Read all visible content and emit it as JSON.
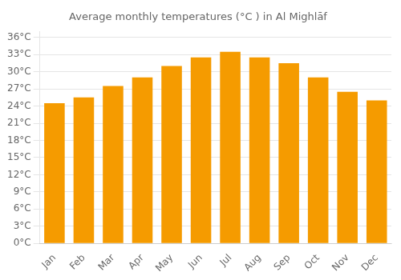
{
  "chart_data": {
    "type": "bar",
    "title": "Average monthly temperatures (°C ) in Al Mighlāf",
    "categories": [
      "Jan",
      "Feb",
      "Mar",
      "Apr",
      "May",
      "Jun",
      "Jul",
      "Aug",
      "Sep",
      "Oct",
      "Nov",
      "Dec"
    ],
    "values": [
      24.5,
      25.5,
      27.5,
      29.0,
      31.0,
      32.5,
      33.5,
      32.5,
      31.5,
      29.0,
      26.5,
      25.0
    ],
    "color": "#F59B00",
    "ylim": [
      0,
      37
    ],
    "yticks": [
      {
        "value": 0,
        "label": "0°C"
      },
      {
        "value": 3,
        "label": "3°C"
      },
      {
        "value": 6,
        "label": "6°C"
      },
      {
        "value": 9,
        "label": "9°C"
      },
      {
        "value": 12,
        "label": "12°C"
      },
      {
        "value": 15,
        "label": "15°C"
      },
      {
        "value": 18,
        "label": "18°C"
      },
      {
        "value": 21,
        "label": "21°C"
      },
      {
        "value": 24,
        "label": "24°C"
      },
      {
        "value": 27,
        "label": "27°C"
      },
      {
        "value": 30,
        "label": "30°C"
      },
      {
        "value": 33,
        "label": "33°C"
      },
      {
        "value": 36,
        "label": "36°C"
      }
    ],
    "grid": true
  }
}
